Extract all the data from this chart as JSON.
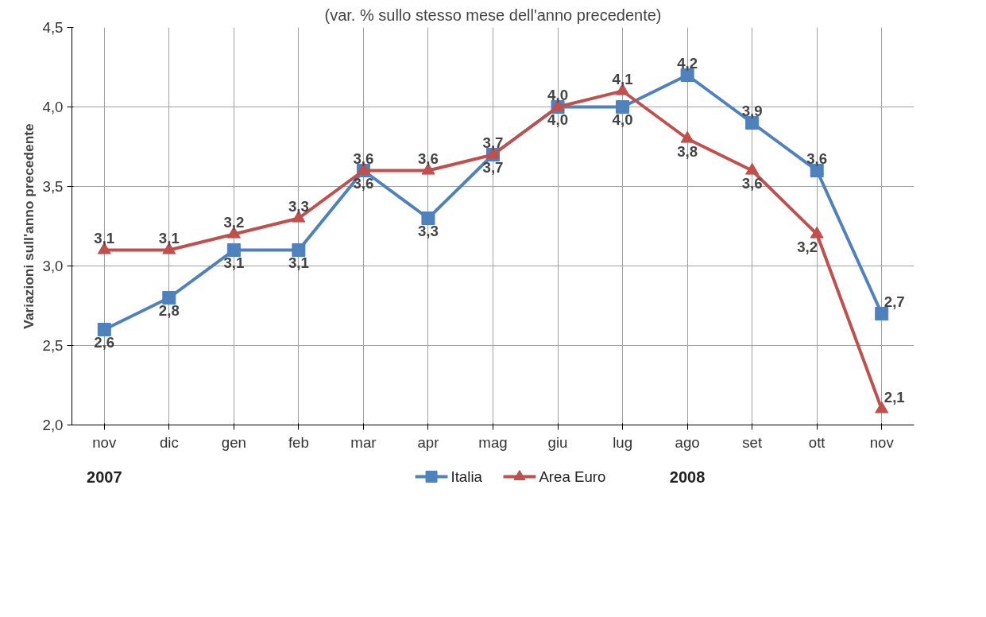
{
  "chart_data": {
    "type": "line",
    "subtitle": "(var. % sullo stesso mese dell'anno precedente)",
    "ylabel": "Variazioni sull'anno precedente",
    "categories": [
      "nov",
      "dic",
      "gen",
      "feb",
      "mar",
      "apr",
      "mag",
      "giu",
      "lug",
      "ago",
      "set",
      "ott",
      "nov"
    ],
    "series": [
      {
        "name": "Italia",
        "color": "#4f81bd",
        "marker": "square",
        "values": [
          2.6,
          2.8,
          3.1,
          3.1,
          3.6,
          3.3,
          3.7,
          4.0,
          4.0,
          4.2,
          3.9,
          3.6,
          2.7
        ],
        "value_labels": [
          "2,6",
          "2,8",
          "3,1",
          "3,1",
          "3,6",
          "3,3",
          "3,7",
          "4,0",
          "4,0",
          "4,2",
          "3,9",
          "3,6",
          "2,7"
        ]
      },
      {
        "name": "Area Euro",
        "color": "#c0504d",
        "marker": "triangle",
        "values": [
          3.1,
          3.1,
          3.2,
          3.3,
          3.6,
          3.6,
          3.7,
          4.0,
          4.1,
          3.8,
          3.6,
          3.2,
          2.1
        ],
        "value_labels": [
          "3,1",
          "3,1",
          "3,2",
          "3,3",
          "3,6",
          "3,6",
          "3,7",
          "4,0",
          "4,1",
          "3,8",
          "3,6",
          "3,2",
          "2,1"
        ]
      }
    ],
    "ylim": [
      2.0,
      4.5
    ],
    "yticks": [
      {
        "value": 2.0,
        "label": "2,0"
      },
      {
        "value": 2.5,
        "label": "2,5"
      },
      {
        "value": 3.0,
        "label": "3,0"
      },
      {
        "value": 3.5,
        "label": "3,5"
      },
      {
        "value": 4.0,
        "label": "4,0"
      },
      {
        "value": 4.5,
        "label": "4,5"
      }
    ],
    "grid": true,
    "legend": "bottom",
    "annotations": [
      "2007",
      "2008"
    ]
  }
}
